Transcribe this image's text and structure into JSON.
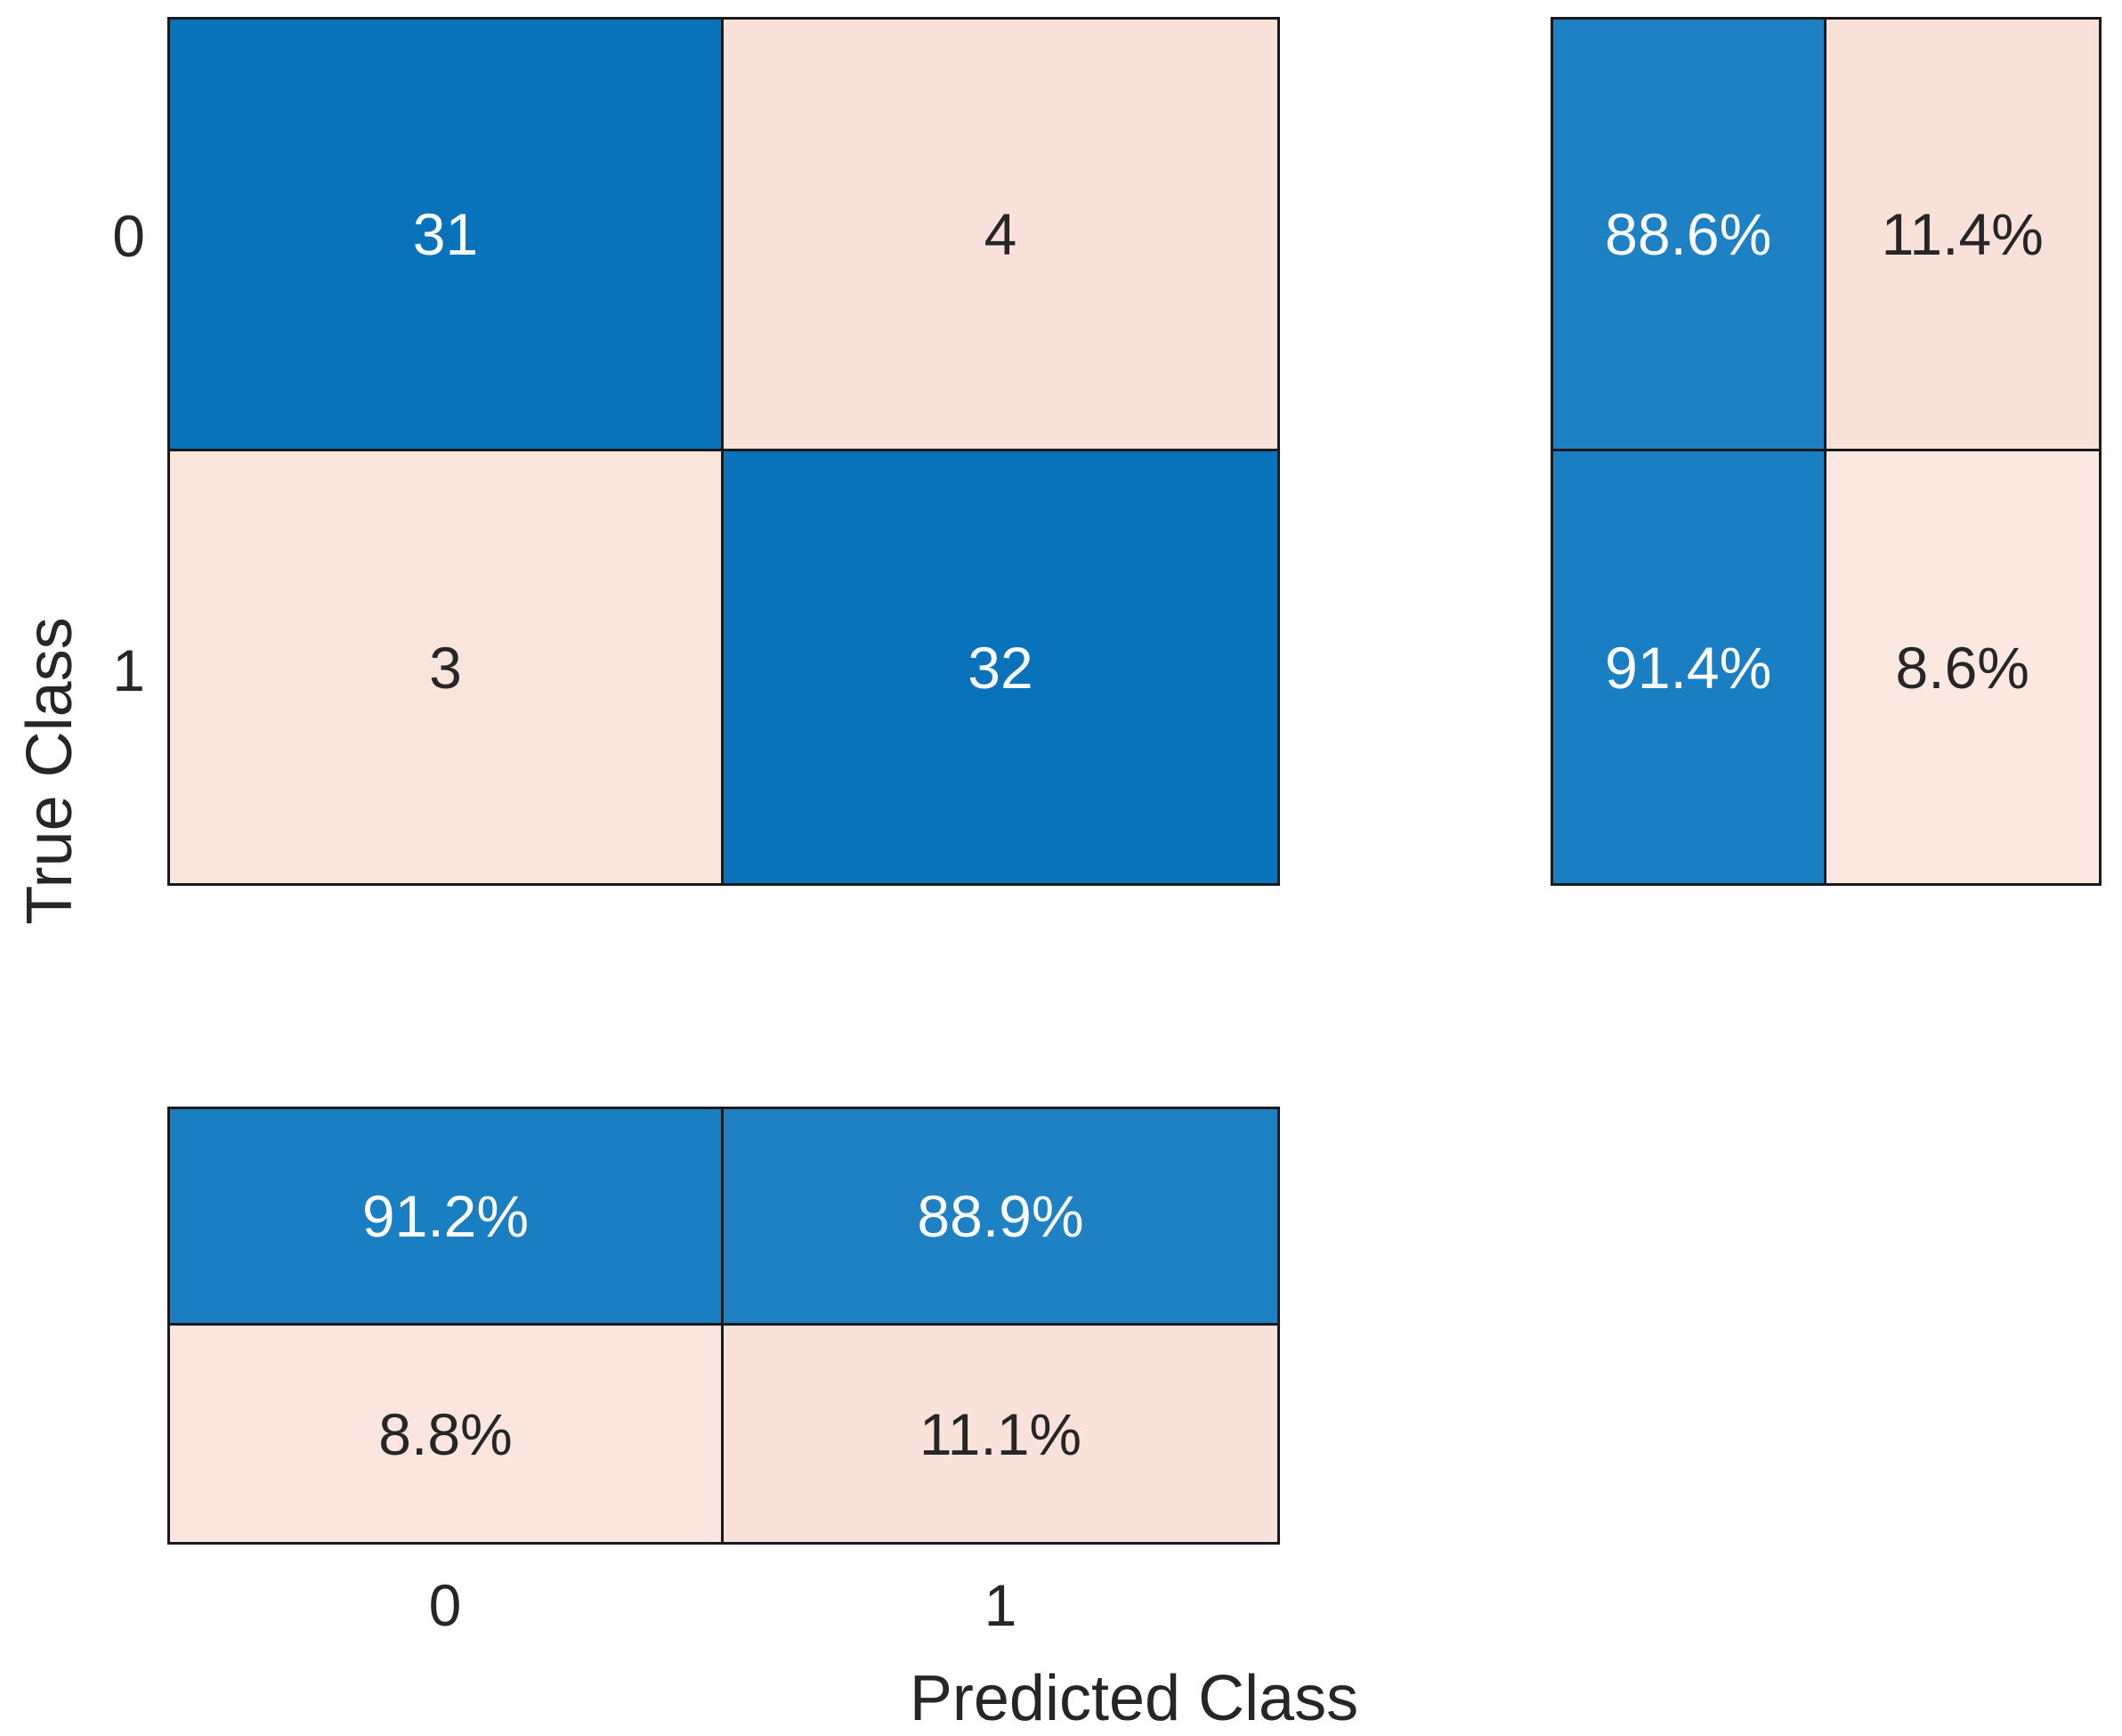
{
  "chart_data": {
    "type": "heatmap",
    "subtype": "confusion_matrix",
    "xlabel": "Predicted Class",
    "ylabel": "True Class",
    "classes": [
      "0",
      "1"
    ],
    "matrix_counts": [
      [
        31,
        4
      ],
      [
        3,
        32
      ]
    ],
    "row_summary_percent": [
      [
        88.6,
        11.4
      ],
      [
        91.4,
        8.6
      ]
    ],
    "column_summary_percent": [
      [
        91.2,
        88.9
      ],
      [
        8.8,
        11.1
      ]
    ],
    "legend": "none",
    "grid": "off"
  },
  "labels": {
    "xlabel": "Predicted Class",
    "ylabel": "True Class"
  },
  "ticks": {
    "x": [
      "0",
      "1"
    ],
    "y": [
      "0",
      "1"
    ]
  },
  "colors": {
    "diagonal_blue": "#0873bb",
    "summary_blue_high": "#1a7ec2",
    "summary_blue_low": "#1e81c4",
    "offdiagonal_pink": "#f7e1d8",
    "pink_light": "#fbe8e1",
    "border": "#1a1a1a",
    "text_dark": "#262626",
    "text_light": "#ffffff",
    "background": "#ffffff"
  },
  "cells": {
    "main": [
      {
        "label": "31",
        "value": 31,
        "bg": "#0873bb",
        "fg": "#ffffff"
      },
      {
        "label": "4",
        "value": 4,
        "bg": "#f7e1d8",
        "fg": "#262626"
      },
      {
        "label": "3",
        "value": 3,
        "bg": "#f8e5dc",
        "fg": "#262626"
      },
      {
        "label": "32",
        "value": 32,
        "bg": "#0873bb",
        "fg": "#ffffff"
      }
    ],
    "row_summary": [
      {
        "label": "88.6%",
        "value": 88.6,
        "bg": "#1e81c4",
        "fg": "#ffffff"
      },
      {
        "label": "11.4%",
        "value": 11.4,
        "bg": "#f7e1d8",
        "fg": "#262626"
      },
      {
        "label": "91.4%",
        "value": 91.4,
        "bg": "#1a7ec2",
        "fg": "#ffffff"
      },
      {
        "label": "8.6%",
        "value": 8.6,
        "bg": "#fbe8e1",
        "fg": "#262626"
      }
    ],
    "column_summary": [
      {
        "label": "91.2%",
        "value": 91.2,
        "bg": "#1a7ec2",
        "fg": "#ffffff"
      },
      {
        "label": "88.9%",
        "value": 88.9,
        "bg": "#1e81c4",
        "fg": "#ffffff"
      },
      {
        "label": "8.8%",
        "value": 8.8,
        "bg": "#fae6df",
        "fg": "#262626"
      },
      {
        "label": "11.1%",
        "value": 11.1,
        "bg": "#f8e2d9",
        "fg": "#262626"
      }
    ]
  }
}
